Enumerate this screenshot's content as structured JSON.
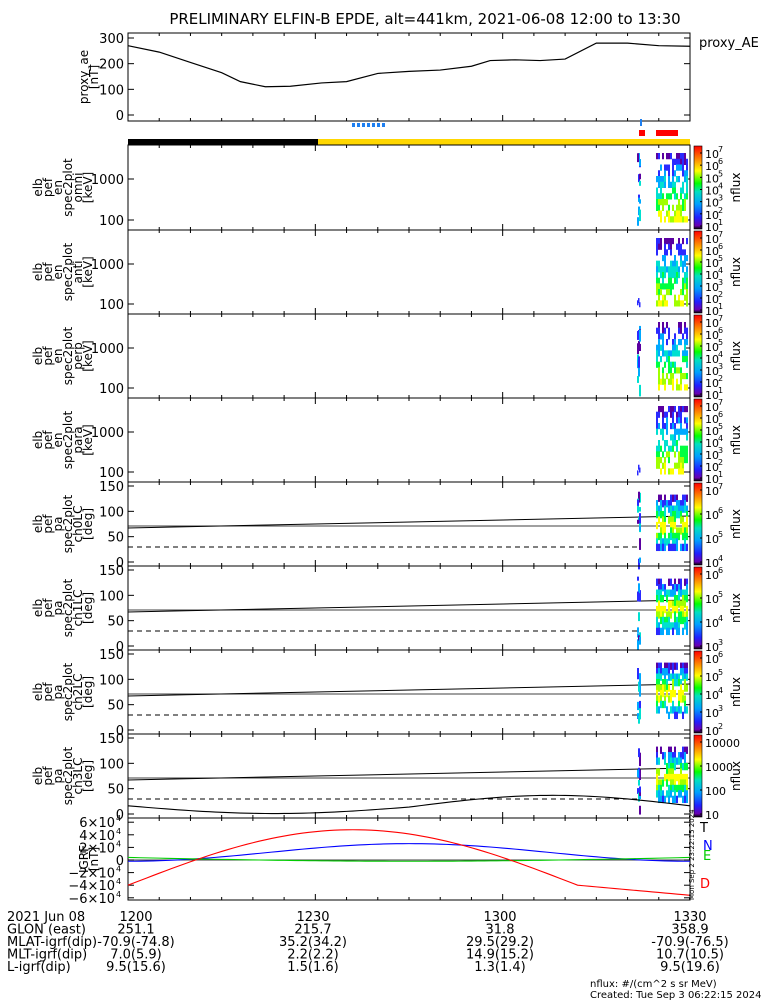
{
  "chart_data": {
    "type": "multi-panel-spectrogram",
    "title": "PRELIMINARY ELFIN-B EPDE, alt=441km, 2021-06-08 12:00 to 13:30",
    "x_ticks": [
      "1200",
      "1230",
      "1300",
      "1330"
    ],
    "panels": [
      {
        "id": "proxy_ae",
        "type": "line",
        "ylabel_lines": [
          "proxy_ae",
          "[nT]"
        ],
        "legend": "proxy_AE",
        "ylim": [
          0,
          300
        ],
        "yticks": [
          "0",
          "100",
          "200",
          "300"
        ],
        "x_min": [
          0,
          5,
          10,
          15,
          18,
          22,
          26,
          31,
          35,
          40,
          45,
          50,
          55,
          58,
          62,
          66,
          70,
          75,
          80,
          85,
          90
        ],
        "y": [
          270,
          245,
          205,
          165,
          130,
          110,
          112,
          125,
          130,
          162,
          170,
          175,
          190,
          212,
          215,
          212,
          218,
          280,
          280,
          270,
          268
        ]
      },
      {
        "id": "omni",
        "type": "heatmap",
        "ylabel_lines": [
          "elb",
          "pef",
          "en",
          "spec2plot",
          "omni",
          "[keV]"
        ],
        "yticks": [
          "100",
          "1000"
        ],
        "cbar_ticks": [
          "10",
          "10",
          "10",
          "10",
          "10",
          "10",
          "10"
        ],
        "cbar_exps": [
          "1",
          "2",
          "3",
          "4",
          "5",
          "6",
          "7"
        ],
        "cbar_label": "nflux"
      },
      {
        "id": "anti",
        "type": "heatmap",
        "ylabel_lines": [
          "elb",
          "pef",
          "en",
          "spec2plot",
          "anti",
          "[keV]"
        ],
        "yticks": [
          "100",
          "1000"
        ],
        "cbar_ticks": [
          "10",
          "10",
          "10",
          "10",
          "10",
          "10",
          "10"
        ],
        "cbar_exps": [
          "1",
          "2",
          "3",
          "4",
          "5",
          "6",
          "7"
        ],
        "cbar_label": "nflux"
      },
      {
        "id": "perp",
        "type": "heatmap",
        "ylabel_lines": [
          "elb",
          "pef",
          "en",
          "spec2plot",
          "perp",
          "[keV]"
        ],
        "yticks": [
          "100",
          "1000"
        ],
        "cbar_ticks": [
          "10",
          "10",
          "10",
          "10",
          "10",
          "10",
          "10"
        ],
        "cbar_exps": [
          "1",
          "2",
          "3",
          "4",
          "5",
          "6",
          "7"
        ],
        "cbar_label": "nflux"
      },
      {
        "id": "para",
        "type": "heatmap",
        "ylabel_lines": [
          "elb",
          "pef",
          "en",
          "spec2plot",
          "para",
          "[keV]"
        ],
        "yticks": [
          "100",
          "1000"
        ],
        "cbar_ticks": [
          "10",
          "10",
          "10",
          "10",
          "10",
          "10",
          "10"
        ],
        "cbar_exps": [
          "1",
          "2",
          "3",
          "4",
          "5",
          "6",
          "7"
        ],
        "cbar_label": "nflux"
      },
      {
        "id": "ch0LC",
        "type": "heatmap",
        "ylabel_lines": [
          "elb",
          "pef",
          "pa",
          "spec2plot",
          "ch0LC",
          "[deg]"
        ],
        "yticks": [
          "0",
          "50",
          "100",
          "150"
        ],
        "cbar_ticks": [
          "10",
          "10",
          "10",
          "10"
        ],
        "cbar_exps": [
          "4",
          "5",
          "6",
          "7"
        ],
        "cbar_label": "nflux"
      },
      {
        "id": "ch1LC",
        "type": "heatmap",
        "ylabel_lines": [
          "elb",
          "pef",
          "pa",
          "spec2plot",
          "ch1LC",
          "[deg]"
        ],
        "yticks": [
          "0",
          "50",
          "100",
          "150"
        ],
        "cbar_ticks": [
          "10",
          "10",
          "10",
          "10"
        ],
        "cbar_exps": [
          "3",
          "4",
          "5",
          "6"
        ],
        "cbar_label": "nflux"
      },
      {
        "id": "ch2LC",
        "type": "heatmap",
        "ylabel_lines": [
          "elb",
          "pef",
          "pa",
          "spec2plot",
          "ch2LC",
          "[deg]"
        ],
        "yticks": [
          "0",
          "50",
          "100",
          "150"
        ],
        "cbar_ticks": [
          "10",
          "10",
          "10",
          "10",
          "10"
        ],
        "cbar_exps": [
          "2",
          "3",
          "4",
          "5",
          "6"
        ],
        "cbar_label": "nflux"
      },
      {
        "id": "ch3LC",
        "type": "heatmap",
        "ylabel_lines": [
          "elb",
          "pef",
          "pa",
          "spec2plot",
          "ch3LC",
          "[deg]"
        ],
        "yticks": [
          "0",
          "50",
          "100",
          "150"
        ],
        "cbar_ticks": [
          "10",
          "100",
          "1000",
          "10000"
        ],
        "cbar_label": "nflux"
      },
      {
        "id": "igrf",
        "type": "line",
        "ylabel_lines": [
          "IGRF",
          "[nT]"
        ],
        "ylim": [
          -60000,
          60000
        ],
        "yticks": [
          "−6×10",
          "−4×10",
          "−2×10",
          "0",
          "2×10",
          "4×10",
          "6×10"
        ],
        "ytick_exp": "4",
        "series": [
          {
            "name": "T",
            "color": "#000000"
          },
          {
            "name": "N",
            "color": "#0000ff"
          },
          {
            "name": "E",
            "color": "#00cc00"
          },
          {
            "name": "D",
            "color": "#ff0000"
          }
        ],
        "side_text": "Mon Sep  2 23:22:15 2024"
      }
    ],
    "footer_rows": [
      {
        "label": "2021 Jun 08",
        "values": [
          "1200",
          "1230",
          "1300",
          "1330"
        ]
      },
      {
        "label": "GLON (east)",
        "values": [
          "251.1",
          "215.7",
          "31.8",
          "358.9"
        ]
      },
      {
        "label": "MLAT-igrf(dip)",
        "values": [
          "-70.9(-74.8)",
          "35.2(34.2)",
          "29.5(29.2)",
          "-70.9(-76.5)"
        ]
      },
      {
        "label": "MLT-igrf(dip)",
        "values": [
          "7.0(5.9)",
          "2.2(2.2)",
          "14.9(15.2)",
          "10.7(10.5)"
        ]
      },
      {
        "label": "L-igrf(dip)",
        "values": [
          "9.5(15.6)",
          "1.5(1.6)",
          "1.3(1.4)",
          "9.5(19.6)"
        ]
      }
    ],
    "footnote": "nflux: #/(cm^2 s sr MeV)",
    "created": "Created: Tue Sep  3 06:22:15 2024"
  }
}
